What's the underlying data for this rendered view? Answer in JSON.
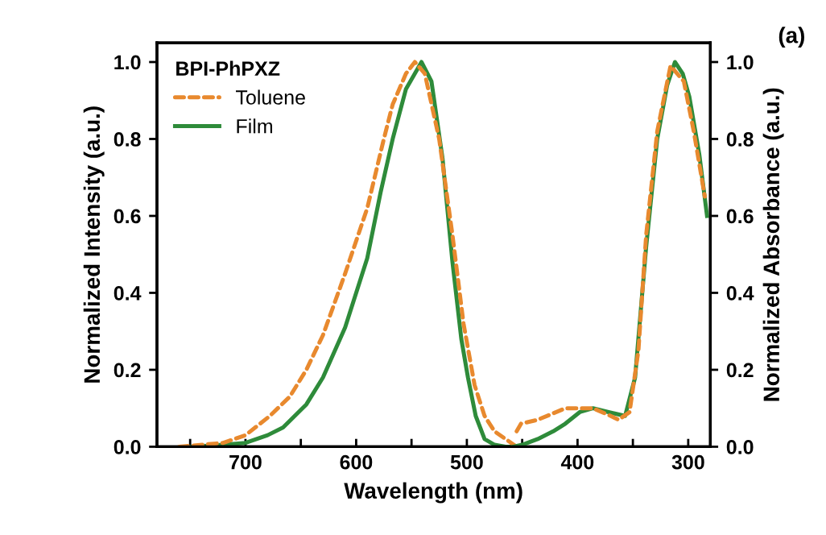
{
  "chart_data": {
    "type": "line",
    "xlabel": "Wavelength (nm)",
    "ylabel": "Normalized Intensity (a.u.)",
    "y2label": "Normalized Absorbance (a.u.)",
    "legend_title": "BPI-PhPXZ",
    "annotations": [
      "(a)"
    ],
    "xlim": [
      780,
      280
    ],
    "xticks": [
      {
        "value": 750,
        "label": null
      },
      700,
      {
        "value": 650,
        "label": null
      },
      600,
      {
        "value": 550,
        "label": null
      },
      500,
      {
        "value": 450,
        "label": null
      },
      400,
      {
        "value": 350,
        "label": null
      },
      300
    ],
    "ylim": [
      0,
      1.05
    ],
    "yticks": [
      {
        "value": 0,
        "label": "0.0"
      },
      0.2,
      0.4,
      0.6,
      0.8,
      {
        "value": 1,
        "label": "1.0"
      }
    ],
    "y2lim": [
      0,
      1.05
    ],
    "y2ticks": [
      {
        "value": 0,
        "label": "0.0"
      },
      0.2,
      0.4,
      0.6,
      0.8,
      {
        "value": 1,
        "label": "1.0"
      }
    ],
    "legend": "top left",
    "grid": false,
    "series": [
      {
        "name": "Toluene",
        "color": "#e8892e",
        "line_style": "dashed",
        "x": [
          760,
          720,
          700,
          678,
          660,
          645,
          630,
          610,
          590,
          575,
          567,
          555,
          547,
          538,
          525,
          513,
          503,
          493,
          484,
          475,
          465,
          455
        ],
        "values": [
          0,
          0.01,
          0.03,
          0.08,
          0.13,
          0.2,
          0.29,
          0.45,
          0.62,
          0.8,
          0.89,
          0.97,
          1.0,
          0.97,
          0.8,
          0.55,
          0.32,
          0.16,
          0.08,
          0.04,
          0.02,
          0
        ]
      },
      {
        "name": "Film",
        "color": "#2e8b3a",
        "line_style": "solid",
        "x": [
          750,
          720,
          700,
          680,
          666,
          645,
          630,
          610,
          590,
          578,
          567,
          555,
          541,
          532,
          522,
          513,
          505,
          499,
          492,
          484,
          475,
          465,
          455
        ],
        "values": [
          0,
          0.005,
          0.01,
          0.03,
          0.05,
          0.11,
          0.18,
          0.31,
          0.49,
          0.66,
          0.8,
          0.93,
          1.0,
          0.95,
          0.75,
          0.48,
          0.28,
          0.18,
          0.08,
          0.02,
          0.005,
          0,
          0
        ]
      },
      {
        "axis": "y2",
        "color": "#e8892e",
        "line_style": "dashed",
        "x": [
          455,
          451,
          436,
          411,
          386,
          370,
          363,
          353,
          345,
          338,
          328,
          316,
          304,
          295,
          285
        ],
        "values": [
          0.04,
          0.06,
          0.07,
          0.1,
          0.1,
          0.08,
          0.07,
          0.09,
          0.25,
          0.55,
          0.82,
          0.99,
          0.95,
          0.82,
          0.65
        ]
      },
      {
        "axis": "y2",
        "color": "#2e8b3a",
        "line_style": "solid",
        "x": [
          458,
          450,
          436,
          422,
          411,
          398,
          386,
          372,
          357,
          348,
          338,
          328,
          319,
          312,
          305,
          299,
          290,
          283
        ],
        "values": [
          0,
          0.005,
          0.02,
          0.04,
          0.06,
          0.09,
          0.1,
          0.09,
          0.08,
          0.18,
          0.52,
          0.8,
          0.94,
          1.0,
          0.97,
          0.91,
          0.76,
          0.6
        ]
      }
    ]
  }
}
